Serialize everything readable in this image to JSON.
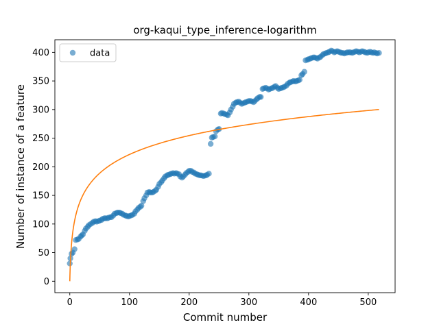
{
  "chart_data": {
    "type": "scatter",
    "title": "org-kaqui_type_inference-logarithm",
    "xlabel": "Commit number",
    "ylabel": "Number of instance of a feature",
    "xlim": [
      -25,
      545
    ],
    "ylim": [
      -20,
      422
    ],
    "xticks": [
      0,
      100,
      200,
      300,
      400,
      500
    ],
    "yticks": [
      0,
      50,
      100,
      150,
      200,
      250,
      300,
      350,
      400
    ],
    "grid": false,
    "legend": {
      "placement": "top-left",
      "entries": [
        "data"
      ]
    },
    "colors": {
      "data": "#1f77b4",
      "fit": "#ff7f0e"
    },
    "series": [
      {
        "name": "data",
        "kind": "scatter",
        "points": [
          [
            0,
            31
          ],
          [
            1,
            40
          ],
          [
            3,
            48
          ],
          [
            5,
            50
          ],
          [
            8,
            56
          ],
          [
            10,
            72
          ],
          [
            13,
            73
          ],
          [
            15,
            74
          ],
          [
            18,
            78
          ],
          [
            20,
            80
          ],
          [
            22,
            82
          ],
          [
            25,
            88
          ],
          [
            27,
            92
          ],
          [
            30,
            95
          ],
          [
            32,
            98
          ],
          [
            35,
            100
          ],
          [
            38,
            102
          ],
          [
            40,
            104
          ],
          [
            43,
            105
          ],
          [
            45,
            104
          ],
          [
            48,
            105
          ],
          [
            50,
            106
          ],
          [
            53,
            107
          ],
          [
            55,
            109
          ],
          [
            58,
            110
          ],
          [
            60,
            110
          ],
          [
            63,
            110
          ],
          [
            65,
            111
          ],
          [
            68,
            112
          ],
          [
            70,
            112
          ],
          [
            73,
            115
          ],
          [
            75,
            118
          ],
          [
            78,
            119
          ],
          [
            80,
            120
          ],
          [
            83,
            120
          ],
          [
            85,
            119
          ],
          [
            88,
            118
          ],
          [
            90,
            116
          ],
          [
            93,
            115
          ],
          [
            95,
            114
          ],
          [
            98,
            113
          ],
          [
            100,
            114
          ],
          [
            103,
            115
          ],
          [
            105,
            116
          ],
          [
            108,
            118
          ],
          [
            110,
            122
          ],
          [
            113,
            125
          ],
          [
            115,
            128
          ],
          [
            118,
            130
          ],
          [
            120,
            132
          ],
          [
            123,
            140
          ],
          [
            125,
            145
          ],
          [
            128,
            150
          ],
          [
            130,
            155
          ],
          [
            133,
            156
          ],
          [
            135,
            155
          ],
          [
            138,
            155
          ],
          [
            140,
            156
          ],
          [
            143,
            158
          ],
          [
            145,
            160
          ],
          [
            148,
            165
          ],
          [
            150,
            170
          ],
          [
            153,
            173
          ],
          [
            155,
            176
          ],
          [
            158,
            180
          ],
          [
            160,
            183
          ],
          [
            163,
            185
          ],
          [
            165,
            186
          ],
          [
            168,
            187
          ],
          [
            170,
            188
          ],
          [
            173,
            189
          ],
          [
            175,
            188
          ],
          [
            178,
            189
          ],
          [
            180,
            188
          ],
          [
            183,
            187
          ],
          [
            185,
            183
          ],
          [
            188,
            181
          ],
          [
            190,
            183
          ],
          [
            193,
            186
          ],
          [
            195,
            189
          ],
          [
            198,
            191
          ],
          [
            200,
            193
          ],
          [
            203,
            193
          ],
          [
            205,
            191
          ],
          [
            208,
            190
          ],
          [
            210,
            188
          ],
          [
            213,
            187
          ],
          [
            215,
            186
          ],
          [
            218,
            185
          ],
          [
            220,
            185
          ],
          [
            223,
            184
          ],
          [
            225,
            184
          ],
          [
            228,
            185
          ],
          [
            230,
            186
          ],
          [
            233,
            188
          ],
          [
            236,
            240
          ],
          [
            238,
            251
          ],
          [
            240,
            252
          ],
          [
            243,
            253
          ],
          [
            245,
            262
          ],
          [
            248,
            265
          ],
          [
            250,
            266
          ],
          [
            253,
            293
          ],
          [
            255,
            294
          ],
          [
            258,
            293
          ],
          [
            260,
            292
          ],
          [
            263,
            291
          ],
          [
            265,
            290
          ],
          [
            268,
            295
          ],
          [
            270,
            300
          ],
          [
            273,
            305
          ],
          [
            275,
            310
          ],
          [
            278,
            312
          ],
          [
            280,
            313
          ],
          [
            283,
            314
          ],
          [
            285,
            312
          ],
          [
            288,
            310
          ],
          [
            290,
            311
          ],
          [
            293,
            312
          ],
          [
            295,
            313
          ],
          [
            298,
            314
          ],
          [
            300,
            315
          ],
          [
            303,
            315
          ],
          [
            305,
            314
          ],
          [
            308,
            313
          ],
          [
            310,
            315
          ],
          [
            313,
            318
          ],
          [
            315,
            320
          ],
          [
            318,
            322
          ],
          [
            320,
            322
          ],
          [
            323,
            336
          ],
          [
            325,
            337
          ],
          [
            328,
            338
          ],
          [
            330,
            337
          ],
          [
            333,
            335
          ],
          [
            335,
            336
          ],
          [
            338,
            337
          ],
          [
            340,
            338
          ],
          [
            343,
            340
          ],
          [
            345,
            341
          ],
          [
            348,
            338
          ],
          [
            350,
            336
          ],
          [
            353,
            337
          ],
          [
            355,
            338
          ],
          [
            358,
            339
          ],
          [
            360,
            340
          ],
          [
            363,
            342
          ],
          [
            365,
            345
          ],
          [
            368,
            347
          ],
          [
            370,
            348
          ],
          [
            373,
            349
          ],
          [
            375,
            350
          ],
          [
            378,
            349
          ],
          [
            380,
            350
          ],
          [
            383,
            351
          ],
          [
            385,
            352
          ],
          [
            388,
            360
          ],
          [
            390,
            362
          ],
          [
            393,
            366
          ],
          [
            395,
            386
          ],
          [
            398,
            387
          ],
          [
            400,
            388
          ],
          [
            403,
            389
          ],
          [
            405,
            390
          ],
          [
            408,
            391
          ],
          [
            410,
            391
          ],
          [
            413,
            390
          ],
          [
            415,
            389
          ],
          [
            418,
            391
          ],
          [
            420,
            392
          ],
          [
            423,
            395
          ],
          [
            425,
            397
          ],
          [
            428,
            398
          ],
          [
            430,
            399
          ],
          [
            433,
            400
          ],
          [
            435,
            401
          ],
          [
            438,
            403
          ],
          [
            440,
            402
          ],
          [
            443,
            400
          ],
          [
            445,
            401
          ],
          [
            448,
            402
          ],
          [
            450,
            401
          ],
          [
            453,
            400
          ],
          [
            455,
            399
          ],
          [
            458,
            399
          ],
          [
            460,
            398
          ],
          [
            463,
            399
          ],
          [
            465,
            400
          ],
          [
            468,
            400
          ],
          [
            470,
            400
          ],
          [
            473,
            399
          ],
          [
            475,
            400
          ],
          [
            478,
            401
          ],
          [
            480,
            402
          ],
          [
            483,
            401
          ],
          [
            485,
            400
          ],
          [
            488,
            401
          ],
          [
            490,
            402
          ],
          [
            493,
            401
          ],
          [
            495,
            400
          ],
          [
            498,
            399
          ],
          [
            500,
            400
          ],
          [
            503,
            401
          ],
          [
            505,
            400
          ],
          [
            508,
            399
          ],
          [
            510,
            400
          ],
          [
            513,
            399
          ],
          [
            515,
            398
          ],
          [
            518,
            399
          ]
        ]
      },
      {
        "kind": "line",
        "function": "y = 48 * ln(x + 1)",
        "x_range": [
          0,
          518
        ]
      }
    ]
  }
}
